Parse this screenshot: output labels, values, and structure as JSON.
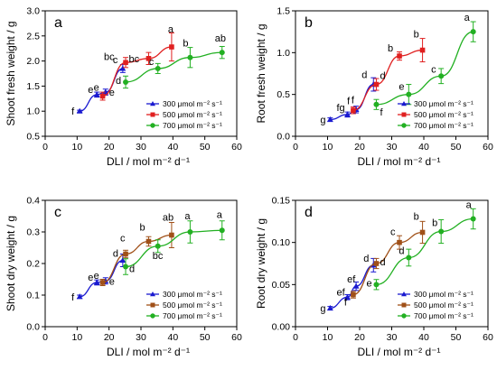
{
  "legend_labels": [
    "300 μmol m⁻² s⁻¹",
    "500 μmol m⁻² s⁻¹",
    "700 μmol m⁻² s⁻¹"
  ],
  "chart_data": [
    {
      "type": "scatter",
      "panel": "a",
      "xlabel": "DLI / mol m⁻² d⁻¹",
      "ylabel": "Shoot fresh weight / g",
      "xlim": [
        0,
        60
      ],
      "xticks": [
        0,
        10,
        20,
        30,
        40,
        50,
        60
      ],
      "ylim": [
        0.5,
        3.0
      ],
      "yticks": [
        0.5,
        1.0,
        1.5,
        2.0,
        2.5,
        3.0
      ],
      "tick_labels_y": [
        "0.5",
        "1.0",
        "1.5",
        "2.0",
        "2.5",
        "3.0"
      ],
      "legend_position": "lower-right",
      "series": [
        {
          "name": "300 μmol m⁻² s⁻¹",
          "color": "#1a1ad0",
          "marker": "triangle",
          "x": [
            10.8,
            16.2,
            18.9,
            24.3
          ],
          "y": [
            1.0,
            1.33,
            1.38,
            1.85
          ],
          "err": [
            0.02,
            0.05,
            0.06,
            0.08
          ],
          "letters": [
            "f",
            "e",
            "e",
            "c"
          ]
        },
        {
          "name": "500 μmol m⁻² s⁻¹",
          "color": "#e02020",
          "marker": "square",
          "x": [
            18.0,
            25.2,
            32.4,
            39.6
          ],
          "y": [
            1.3,
            1.97,
            2.05,
            2.28
          ],
          "err": [
            0.08,
            0.1,
            0.12,
            0.28
          ],
          "letters": [
            "e",
            "bc",
            "bc",
            "a"
          ]
        },
        {
          "name": "700 μmol m⁻² s⁻¹",
          "color": "#22b022",
          "marker": "circle",
          "x": [
            25.2,
            35.3,
            45.4,
            55.4
          ],
          "y": [
            1.58,
            1.85,
            2.07,
            2.17
          ],
          "err": [
            0.12,
            0.1,
            0.2,
            0.12
          ],
          "letters": [
            "d",
            "c",
            "b",
            "ab"
          ]
        }
      ]
    },
    {
      "type": "scatter",
      "panel": "b",
      "xlabel": "DLI / mol m⁻² d⁻¹",
      "ylabel": "Root fresh weight / g",
      "xlim": [
        0,
        60
      ],
      "xticks": [
        0,
        10,
        20,
        30,
        40,
        50,
        60
      ],
      "ylim": [
        0.0,
        1.5
      ],
      "yticks": [
        0.0,
        0.5,
        1.0,
        1.5
      ],
      "tick_labels_y": [
        "0.0",
        "0.5",
        "1.0",
        "1.5"
      ],
      "legend_position": "lower-right",
      "series": [
        {
          "name": "300 μmol m⁻² s⁻¹",
          "color": "#1a1ad0",
          "marker": "triangle",
          "x": [
            10.8,
            16.2,
            18.9,
            24.3
          ],
          "y": [
            0.2,
            0.26,
            0.32,
            0.62
          ],
          "err": [
            0.02,
            0.03,
            0.04,
            0.08
          ],
          "letters": [
            "g",
            "fg",
            "f",
            "d"
          ]
        },
        {
          "name": "500 μmol m⁻² s⁻¹",
          "color": "#e02020",
          "marker": "square",
          "x": [
            18.0,
            25.2,
            32.4,
            39.6
          ],
          "y": [
            0.31,
            0.62,
            0.96,
            1.03
          ],
          "err": [
            0.04,
            0.07,
            0.05,
            0.14
          ],
          "letters": [
            "f",
            "d",
            "b",
            "b"
          ]
        },
        {
          "name": "700 μmol m⁻² s⁻¹",
          "color": "#22b022",
          "marker": "circle",
          "x": [
            25.2,
            35.3,
            45.4,
            55.4
          ],
          "y": [
            0.38,
            0.5,
            0.72,
            1.25
          ],
          "err": [
            0.06,
            0.12,
            0.09,
            0.12
          ],
          "letters": [
            "f",
            "e",
            "c",
            "a"
          ]
        }
      ]
    },
    {
      "type": "scatter",
      "panel": "c",
      "xlabel": "DLI / mol m⁻² d⁻¹",
      "ylabel": "Shoot dry weight / g",
      "xlim": [
        0,
        60
      ],
      "xticks": [
        0,
        10,
        20,
        30,
        40,
        50,
        60
      ],
      "ylim": [
        0.0,
        0.4
      ],
      "yticks": [
        0.0,
        0.1,
        0.2,
        0.3,
        0.4
      ],
      "tick_labels_y": [
        "0.0",
        "0.1",
        "0.2",
        "0.3",
        "0.4"
      ],
      "legend_position": "lower-right",
      "series": [
        {
          "name": "300 μmol m⁻² s⁻¹",
          "color": "#1a1ad0",
          "marker": "triangle",
          "x": [
            10.8,
            16.2,
            18.9,
            24.3
          ],
          "y": [
            0.095,
            0.14,
            0.145,
            0.21
          ],
          "err": [
            0.005,
            0.008,
            0.01,
            0.02
          ],
          "letters": [
            "f",
            "e",
            "e",
            "d"
          ]
        },
        {
          "name": "500 μmol m⁻² s⁻¹",
          "color": "#a05018",
          "marker": "square",
          "x": [
            18.0,
            25.2,
            32.4,
            39.6
          ],
          "y": [
            0.14,
            0.23,
            0.27,
            0.29
          ],
          "err": [
            0.01,
            0.012,
            0.015,
            0.04
          ],
          "letters": [
            "e",
            "c",
            "b",
            "ab"
          ]
        },
        {
          "name": "700 μmol m⁻² s⁻¹",
          "color": "#22b022",
          "marker": "circle",
          "x": [
            25.2,
            35.3,
            45.4,
            55.4
          ],
          "y": [
            0.19,
            0.255,
            0.3,
            0.305
          ],
          "err": [
            0.025,
            0.02,
            0.035,
            0.03
          ],
          "letters": [
            "d",
            "bc",
            "a",
            "a"
          ]
        }
      ]
    },
    {
      "type": "scatter",
      "panel": "d",
      "xlabel": "DLI / mol m⁻² d⁻¹",
      "ylabel": "Root dry weight / g",
      "xlim": [
        0,
        60
      ],
      "xticks": [
        0,
        10,
        20,
        30,
        40,
        50,
        60
      ],
      "ylim": [
        0.0,
        0.15
      ],
      "yticks": [
        0.0,
        0.05,
        0.1,
        0.15
      ],
      "tick_labels_y": [
        "0.00",
        "0.05",
        "0.10",
        "0.15"
      ],
      "legend_position": "lower-right",
      "series": [
        {
          "name": "300 μmol m⁻² s⁻¹",
          "color": "#1a1ad0",
          "marker": "triangle",
          "x": [
            10.8,
            16.2,
            18.9,
            24.3
          ],
          "y": [
            0.022,
            0.035,
            0.048,
            0.073
          ],
          "err": [
            0.002,
            0.003,
            0.005,
            0.008
          ],
          "letters": [
            "g",
            "ef",
            "ef",
            "d"
          ]
        },
        {
          "name": "500 μmol m⁻² s⁻¹",
          "color": "#a05018",
          "marker": "square",
          "x": [
            18.0,
            25.2,
            32.4,
            39.6
          ],
          "y": [
            0.038,
            0.075,
            0.1,
            0.112
          ],
          "err": [
            0.004,
            0.006,
            0.008,
            0.013
          ],
          "letters": [
            "f",
            "d",
            "c",
            "b"
          ]
        },
        {
          "name": "700 μmol m⁻² s⁻¹",
          "color": "#22b022",
          "marker": "circle",
          "x": [
            25.2,
            35.3,
            45.4,
            55.4
          ],
          "y": [
            0.05,
            0.082,
            0.113,
            0.128
          ],
          "err": [
            0.006,
            0.01,
            0.014,
            0.012
          ],
          "letters": [
            "e",
            "d",
            "b",
            "a"
          ]
        }
      ]
    }
  ]
}
